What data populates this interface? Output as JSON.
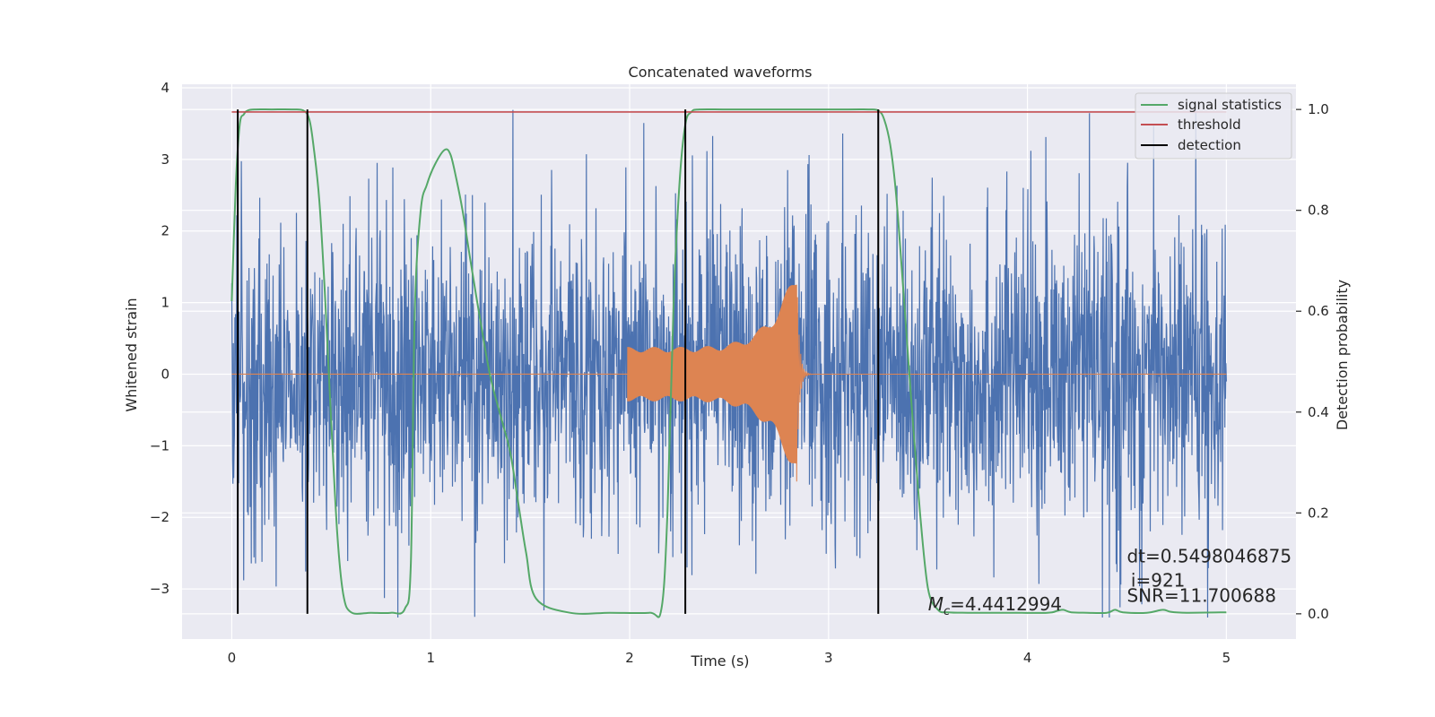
{
  "chart_data": {
    "type": "line",
    "title": "Concatenated waveforms",
    "xlabel": "Time (s)",
    "ylabel": "Whitened strain",
    "y2label": "Detection probability",
    "xlim": [
      -0.25,
      5.35
    ],
    "ylim": [
      -3.7,
      4.05
    ],
    "y2lim": [
      -0.05,
      1.05
    ],
    "xticks": [
      0,
      1,
      2,
      3,
      4,
      5
    ],
    "yticks": [
      -3,
      -2,
      -1,
      0,
      1,
      2,
      3,
      4
    ],
    "y2ticks": [
      0.0,
      0.2,
      0.4,
      0.6,
      0.8,
      1.0
    ],
    "xtick_labels": [
      "0",
      "1",
      "2",
      "3",
      "4",
      "5"
    ],
    "ytick_labels": [
      "−3",
      "−2",
      "−1",
      "0",
      "1",
      "2",
      "3",
      "4"
    ],
    "y2tick_labels": [
      "0.0",
      "0.2",
      "0.4",
      "0.6",
      "0.8",
      "1.0"
    ],
    "grid": true,
    "legend_position": "top-right",
    "legend": [
      "signal statistics",
      "threshold",
      "detection"
    ],
    "colors": {
      "noise": "#4c72b0",
      "waveform": "#dd8452",
      "signal_statistics": "#55a868",
      "threshold": "#c44e52",
      "detection": "#000000",
      "plot_bg": "#eaeaf2"
    },
    "noise_series": {
      "t_start": 0,
      "t_end": 5,
      "approx_range": [
        -3.4,
        3.7
      ]
    },
    "waveform_series": {
      "t_start": 1.99,
      "t_end": 2.84,
      "envelope_start": 0.38,
      "envelope_peak": 1.5
    },
    "signal_statistics": {
      "x": [
        0.0,
        0.02,
        0.04,
        0.06,
        0.08,
        0.12,
        0.2,
        0.3,
        0.36,
        0.39,
        0.41,
        0.44,
        0.47,
        0.5,
        0.53,
        0.56,
        0.6,
        0.7,
        0.8,
        0.87,
        0.9,
        0.92,
        0.95,
        0.98,
        1.02,
        1.07,
        1.1,
        1.13,
        1.16,
        1.2,
        1.25,
        1.3,
        1.36,
        1.4,
        1.44,
        1.48,
        1.53,
        1.7,
        1.9,
        2.1,
        2.16,
        2.19,
        2.22,
        2.25,
        2.28,
        2.31,
        2.35,
        2.5,
        2.8,
        3.1,
        3.2,
        3.25,
        3.28,
        3.31,
        3.34,
        3.38,
        3.42,
        3.46,
        3.5,
        3.55,
        3.6,
        3.7,
        3.9,
        4.1,
        4.15,
        4.18,
        4.22,
        4.3,
        4.4,
        4.44,
        4.48,
        4.6,
        4.68,
        4.72,
        4.8,
        5.0
      ],
      "y": [
        0.62,
        0.85,
        0.97,
        0.99,
        0.998,
        1.0,
        1.0,
        1.0,
        0.998,
        0.98,
        0.93,
        0.82,
        0.62,
        0.38,
        0.16,
        0.04,
        0.003,
        0.002,
        0.002,
        0.01,
        0.1,
        0.6,
        0.8,
        0.85,
        0.89,
        0.92,
        0.91,
        0.86,
        0.8,
        0.7,
        0.58,
        0.47,
        0.38,
        0.32,
        0.22,
        0.12,
        0.03,
        0.002,
        0.002,
        0.002,
        0.01,
        0.2,
        0.6,
        0.85,
        0.97,
        0.995,
        1.0,
        1.0,
        1.0,
        1.0,
        1.0,
        0.998,
        0.98,
        0.93,
        0.83,
        0.62,
        0.4,
        0.2,
        0.05,
        0.008,
        0.003,
        0.002,
        0.002,
        0.002,
        0.006,
        0.008,
        0.003,
        0.002,
        0.002,
        0.008,
        0.003,
        0.002,
        0.008,
        0.004,
        0.002,
        0.003
      ]
    },
    "threshold": {
      "value": 0.995,
      "x_range": [
        0,
        5
      ]
    },
    "detections": [
      0.03,
      0.38,
      2.28,
      3.25
    ],
    "detection_span": [
      0,
      1.0
    ],
    "annotations": [
      {
        "text_main": "M",
        "text_sub": "c",
        "text_rest": "=4.4412994",
        "x": 3.5,
        "y": -3.3
      },
      {
        "text": "dt=0.5498046875",
        "x": 4.5,
        "y": -2.63
      },
      {
        "text": "i=921",
        "x": 4.52,
        "y": -2.97
      },
      {
        "text": "SNR=11.700688",
        "x": 4.5,
        "y": -3.18
      }
    ]
  }
}
